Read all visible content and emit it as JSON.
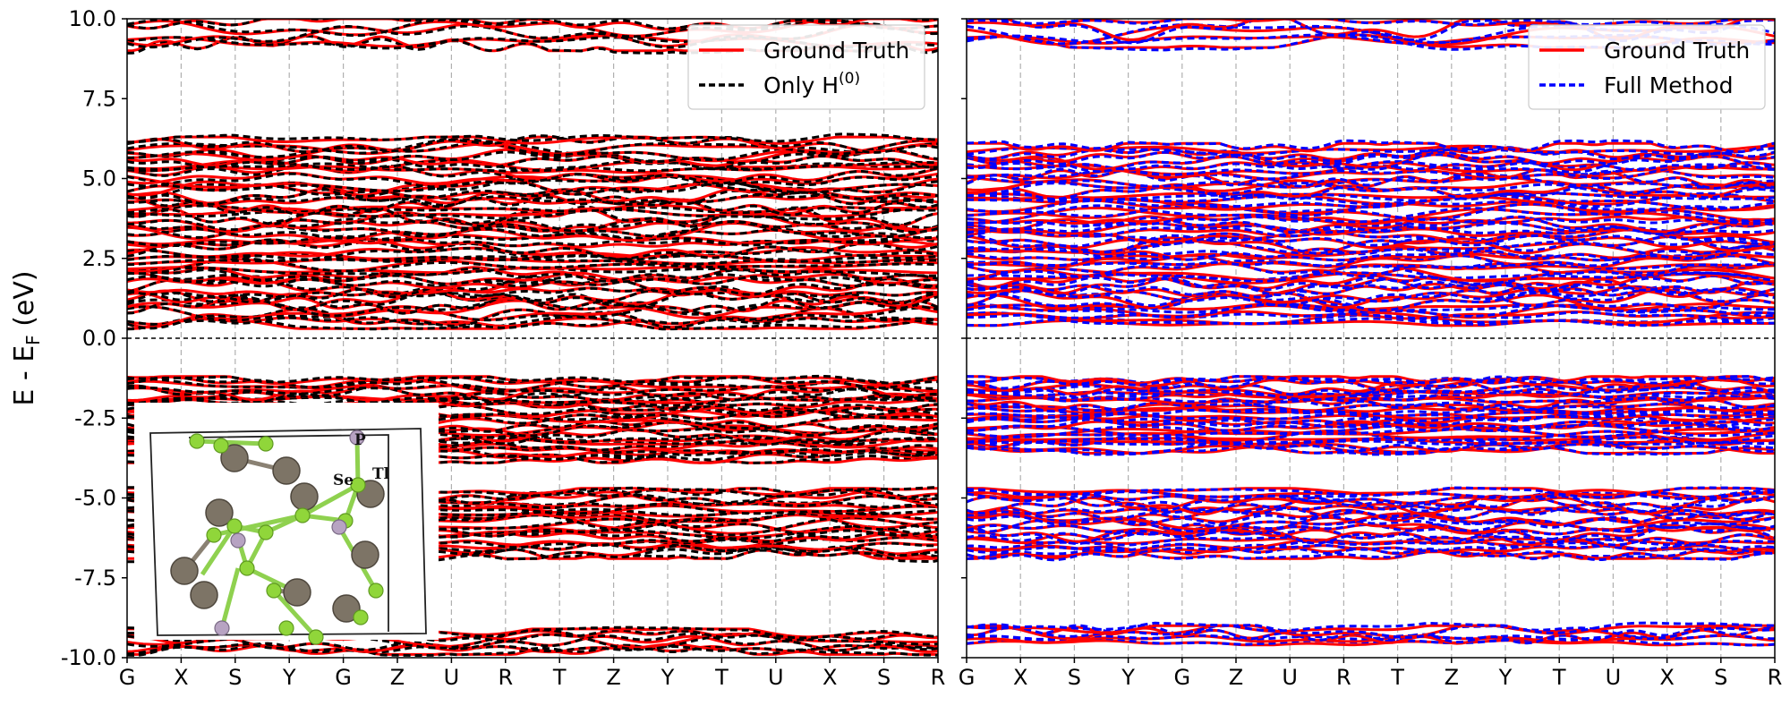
{
  "chart_data": [
    {
      "type": "line",
      "panel": "left",
      "ylabel": "E - E_F (eV)",
      "ylim": [
        -10.0,
        10.0
      ],
      "yticks": [
        "10.0",
        "7.5",
        "5.0",
        "2.5",
        "0.0",
        "-2.5",
        "-5.0",
        "-7.5",
        "-10.0"
      ],
      "kpath": [
        "G",
        "X",
        "S",
        "Y",
        "G",
        "Z",
        "U",
        "R",
        "T",
        "Z",
        "Y",
        "T",
        "U",
        "X",
        "S",
        "R"
      ],
      "fermi_level": 0.0,
      "legend_position": "top-right",
      "series": [
        {
          "name": "Ground Truth",
          "color": "#ff0000",
          "style": "solid"
        },
        {
          "name": "Only H",
          "name_superscript": "(0)",
          "color": "#000000",
          "style": "dashed"
        }
      ],
      "band_groups": [
        {
          "range": [
            -9.9,
            -9.1
          ],
          "count": 6
        },
        {
          "range": [
            -6.9,
            -4.7
          ],
          "count": 18
        },
        {
          "range": [
            -3.9,
            -1.2
          ],
          "count": 24
        },
        {
          "range": [
            0.3,
            6.3
          ],
          "count": 44
        },
        {
          "range": [
            9.0,
            10.0
          ],
          "count": 5
        }
      ],
      "inset_labels": [
        "P",
        "Tl",
        "Se"
      ]
    },
    {
      "type": "line",
      "panel": "right",
      "ylim": [
        -10.0,
        10.0
      ],
      "kpath": [
        "G",
        "X",
        "S",
        "Y",
        "G",
        "Z",
        "U",
        "R",
        "T",
        "Z",
        "Y",
        "T",
        "U",
        "X",
        "S",
        "R"
      ],
      "fermi_level": 0.0,
      "legend_position": "top-right",
      "series": [
        {
          "name": "Ground Truth",
          "color": "#ff0000",
          "style": "solid"
        },
        {
          "name": "Full Method",
          "color": "#0000ff",
          "style": "dashed"
        }
      ],
      "band_groups": [
        {
          "range": [
            -9.6,
            -9.0
          ],
          "count": 5
        },
        {
          "range": [
            -6.9,
            -4.7
          ],
          "count": 18
        },
        {
          "range": [
            -3.6,
            -1.2
          ],
          "count": 24
        },
        {
          "range": [
            0.4,
            6.1
          ],
          "count": 44
        },
        {
          "range": [
            9.1,
            10.0
          ],
          "count": 5
        }
      ]
    }
  ]
}
